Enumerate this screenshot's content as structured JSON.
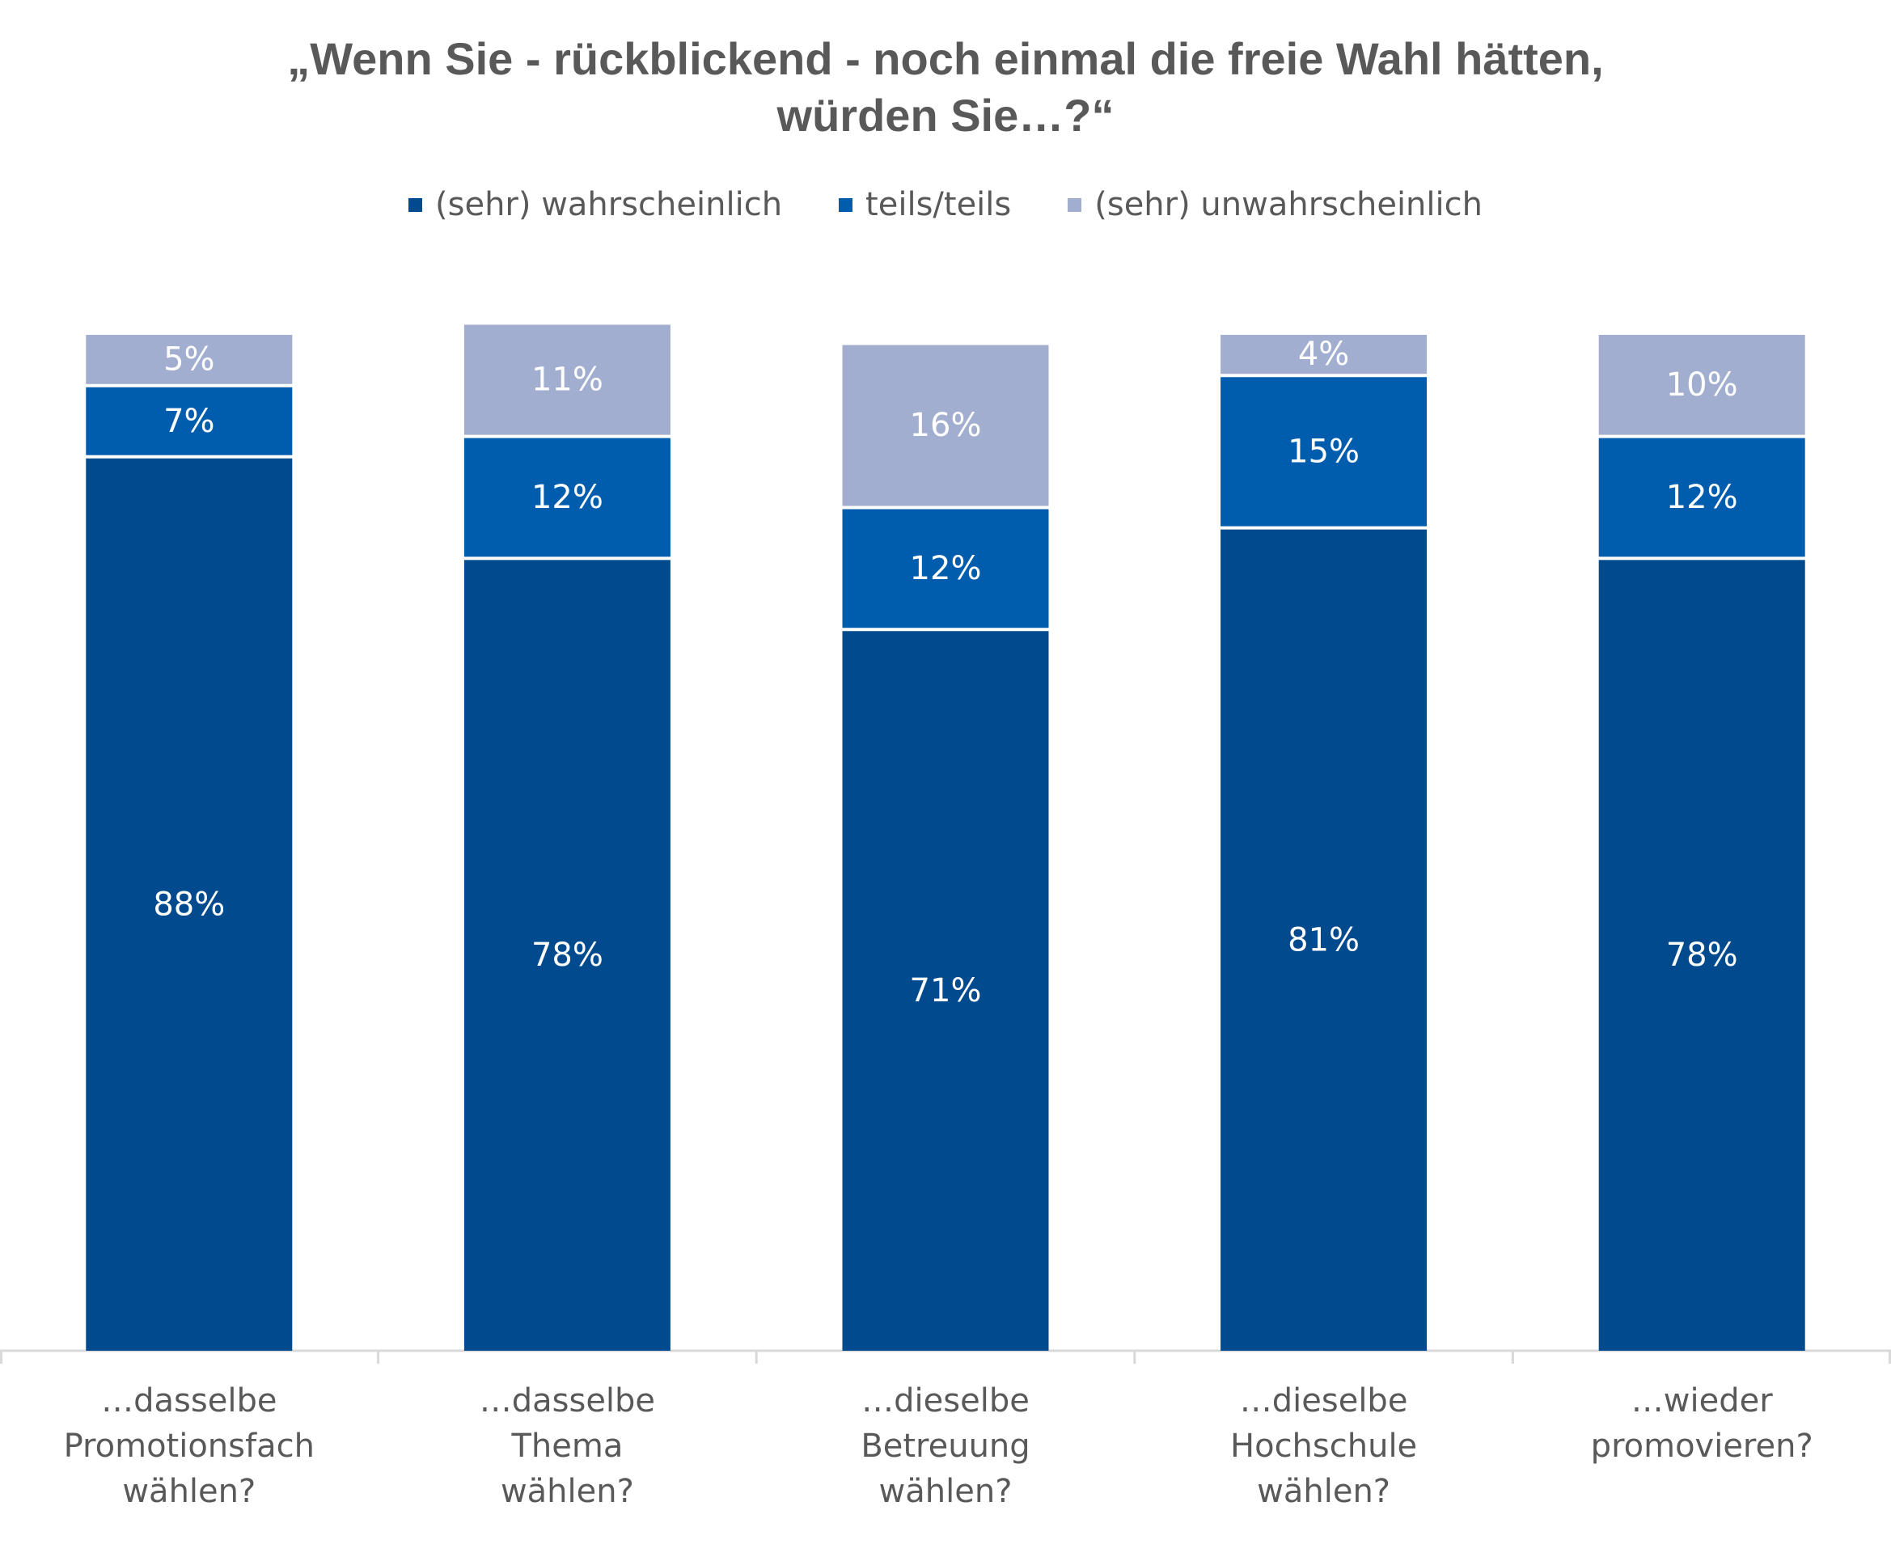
{
  "chart_data": {
    "type": "bar",
    "stacked": true,
    "title_lines": [
      "„Wenn Sie - rückblickend - noch einmal die freie Wahl hätten,",
      "würden Sie…?“"
    ],
    "legend_position": "top",
    "categories": [
      [
        "…dasselbe",
        "Promotionsfach",
        "wählen?"
      ],
      [
        "…dasselbe",
        "Thema",
        "wählen?"
      ],
      [
        "…dieselbe",
        "Betreuung",
        "wählen?"
      ],
      [
        "…dieselbe",
        "Hochschule",
        "wählen?"
      ],
      [
        "…wieder",
        "promovieren?"
      ]
    ],
    "series": [
      {
        "name": "(sehr) wahrscheinlich",
        "color": "#004A8D",
        "values": [
          88,
          78,
          71,
          81,
          78
        ],
        "labels": [
          "88%",
          "78%",
          "71%",
          "81%",
          "78%"
        ]
      },
      {
        "name": "teils/teils",
        "color": "#005CAD",
        "values": [
          7,
          12,
          12,
          15,
          12
        ],
        "labels": [
          "7%",
          "12%",
          "12%",
          "15%",
          "12%"
        ]
      },
      {
        "name": "(sehr) unwahrscheinlich",
        "color": "#A2AECF",
        "values": [
          5,
          11,
          16,
          4,
          10
        ],
        "labels": [
          "5%",
          "11%",
          "16%",
          "4%",
          "10%"
        ]
      }
    ],
    "ylim": [
      0,
      100
    ],
    "grid": false
  }
}
